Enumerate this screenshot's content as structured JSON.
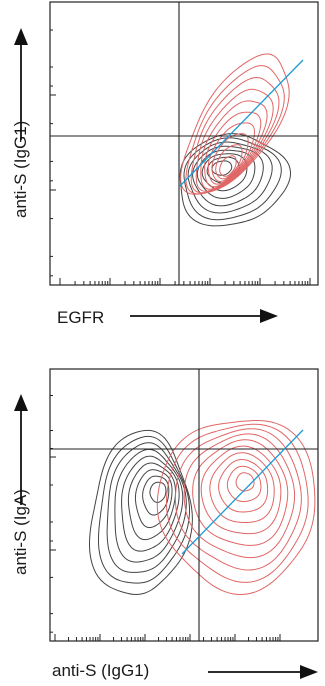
{
  "chart_data": [
    {
      "type": "contour",
      "xlabel": "EGFR",
      "ylabel": "anti-S (IgG1)",
      "x_scale": "log",
      "y_scale": "log",
      "gate": {
        "x": 1000,
        "y": 20000
      },
      "colors": {
        "population_1": "#444444",
        "population_2": "#e06666",
        "diagonal": "#1e9ad6",
        "gate": "#222222"
      },
      "series": [
        {
          "center": [
            2000,
            4000
          ],
          "levels": 8
        },
        {
          "center": [
            3000,
            8000
          ],
          "levels": 10
        }
      ]
    },
    {
      "type": "contour",
      "xlabel": "anti-S (IgG1)",
      "ylabel": "anti-S (IgA)",
      "x_scale": "log",
      "y_scale": "log",
      "gate": {
        "x": 1200,
        "y": 5000
      },
      "colors": {
        "population_1": "#444444",
        "population_2": "#e06666",
        "diagonal": "#1e9ad6",
        "gate": "#222222"
      },
      "series": [
        {
          "center": [
            300,
            2000
          ],
          "levels": 9
        },
        {
          "center": [
            2500,
            2500
          ],
          "levels": 10
        }
      ]
    }
  ]
}
